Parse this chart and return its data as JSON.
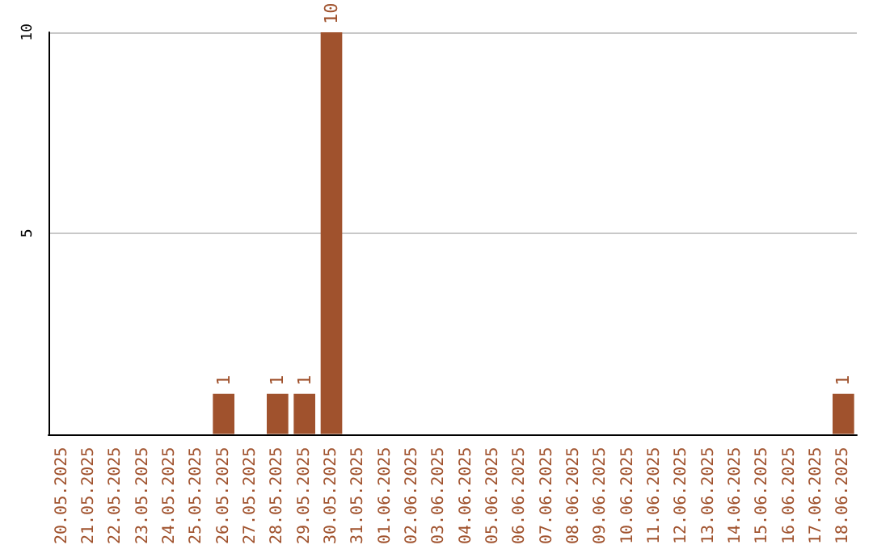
{
  "chart_data": {
    "type": "bar",
    "categories": [
      "20.05.2025",
      "21.05.2025",
      "22.05.2025",
      "23.05.2025",
      "24.05.2025",
      "25.05.2025",
      "26.05.2025",
      "27.05.2025",
      "28.05.2025",
      "29.05.2025",
      "30.05.2025",
      "31.05.2025",
      "01.06.2025",
      "02.06.2025",
      "03.06.2025",
      "04.06.2025",
      "05.06.2025",
      "06.06.2025",
      "07.06.2025",
      "08.06.2025",
      "09.06.2025",
      "10.06.2025",
      "11.06.2025",
      "12.06.2025",
      "13.06.2025",
      "14.06.2025",
      "15.06.2025",
      "16.06.2025",
      "17.06.2025",
      "18.06.2025"
    ],
    "values": [
      0,
      0,
      0,
      0,
      0,
      0,
      1,
      0,
      1,
      1,
      10,
      0,
      0,
      0,
      0,
      0,
      0,
      0,
      0,
      0,
      0,
      0,
      0,
      0,
      0,
      0,
      0,
      0,
      0,
      1
    ],
    "value_labels": [
      null,
      null,
      null,
      null,
      null,
      null,
      "1",
      null,
      "1",
      "1",
      "10",
      null,
      null,
      null,
      null,
      null,
      null,
      null,
      null,
      null,
      null,
      null,
      null,
      null,
      null,
      null,
      null,
      null,
      null,
      "1"
    ],
    "color": "#a0522d",
    "ylim": [
      0,
      10
    ],
    "yticks": [
      5,
      10
    ],
    "grid": "y"
  }
}
